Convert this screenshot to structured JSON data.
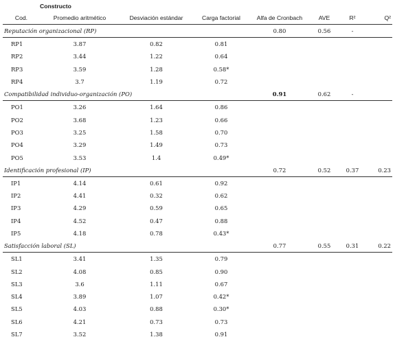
{
  "table": {
    "super_header": "Constructo",
    "columns": [
      "Cod.",
      "Promedio aritmético",
      "Desviación estándar",
      "Carga factorial",
      "Alfa de Cronbach",
      "AVE",
      "R²",
      "Q²"
    ],
    "sections": [
      {
        "name": "Reputación organizacional (RP)",
        "alpha": "0.80",
        "ave": "0.56",
        "r2": "-",
        "q2": "",
        "rows": [
          {
            "cod": "RP1",
            "mean": "3.87",
            "sd": "0.82",
            "load": "0.81"
          },
          {
            "cod": "RP2",
            "mean": "3.44",
            "sd": "1.22",
            "load": "0.64"
          },
          {
            "cod": "RP3",
            "mean": "3.59",
            "sd": "1.28",
            "load": "0.58*"
          },
          {
            "cod": "RP4",
            "mean": "3.7",
            "sd": "1.19",
            "load": "0.72"
          }
        ]
      },
      {
        "name": "Compatibilidad individuo-organización (PO)",
        "alpha": "0.91",
        "ave": "0.62",
        "r2": "-",
        "q2": "",
        "rows": [
          {
            "cod": "PO1",
            "mean": "3.26",
            "sd": "1.64",
            "load": "0.86"
          },
          {
            "cod": "PO2",
            "mean": "3.68",
            "sd": "1.23",
            "load": "0.66"
          },
          {
            "cod": "PO3",
            "mean": "3.25",
            "sd": "1.58",
            "load": "0.70"
          },
          {
            "cod": "PO4",
            "mean": "3.29",
            "sd": "1.49",
            "load": "0.73"
          },
          {
            "cod": "PO5",
            "mean": "3.53",
            "sd": "1.4",
            "load": "0.49*"
          }
        ]
      },
      {
        "name": "Identificación profesional (IP)",
        "alpha": "0.72",
        "ave": "0.52",
        "r2": "0.37",
        "q2": "0.23",
        "rows": [
          {
            "cod": "IP1",
            "mean": "4.14",
            "sd": "0.61",
            "load": "0.92"
          },
          {
            "cod": "IP2",
            "mean": "4.41",
            "sd": "0.32",
            "load": "0.62"
          },
          {
            "cod": "IP3",
            "mean": "4.29",
            "sd": "0.59",
            "load": "0.65"
          },
          {
            "cod": "IP4",
            "mean": "4.52",
            "sd": "0.47",
            "load": "0.88"
          },
          {
            "cod": "IP5",
            "mean": "4.18",
            "sd": "0.78",
            "load": "0.43*"
          }
        ]
      },
      {
        "name": "Satisfacción laboral (SL)",
        "alpha": "0.77",
        "ave": "0.55",
        "r2": "0.31",
        "q2": "0.22",
        "rows": [
          {
            "cod": "SL1",
            "mean": "3.41",
            "sd": "1.35",
            "load": "0.79"
          },
          {
            "cod": "SL2",
            "mean": "4.08",
            "sd": "0.85",
            "load": "0.90"
          },
          {
            "cod": "SL3",
            "mean": "3.6",
            "sd": "1.11",
            "load": "0.67"
          },
          {
            "cod": "SL4",
            "mean": "3.89",
            "sd": "1.07",
            "load": "0.42*"
          },
          {
            "cod": "SL5",
            "mean": "4.03",
            "sd": "0.88",
            "load": "0.30*"
          },
          {
            "cod": "SL6",
            "mean": "4.21",
            "sd": "0.73",
            "load": "0.73"
          },
          {
            "cod": "SL7",
            "mean": "3.52",
            "sd": "1.38",
            "load": "0.91"
          }
        ]
      }
    ]
  }
}
